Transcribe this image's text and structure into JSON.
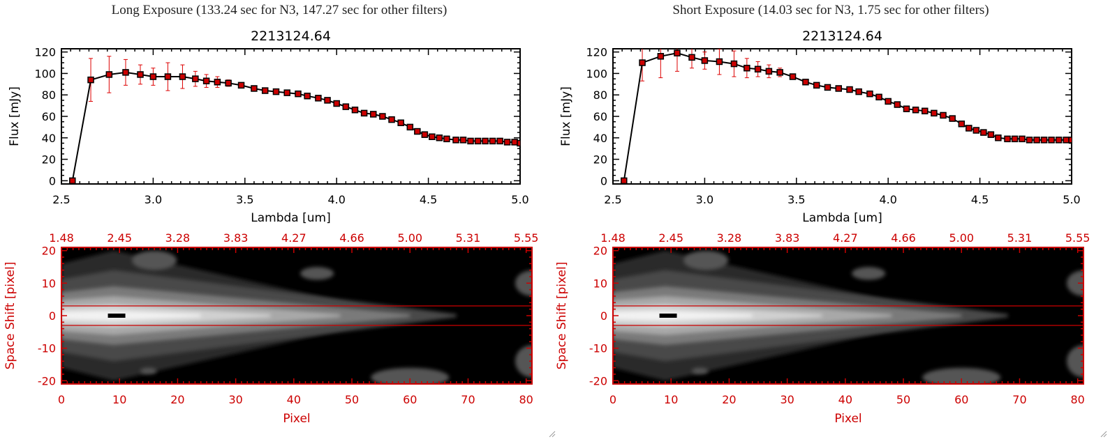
{
  "panels": [
    {
      "heading": "Long Exposure (133.24 sec for N3, 147.27 sec for other filters)",
      "chart_data": {
        "type": "line",
        "title": "2213124.64",
        "xlabel": "Lambda [um]",
        "ylabel": "Flux [mJy]",
        "xlim": [
          2.5,
          5.0
        ],
        "ylim": [
          -3,
          123
        ],
        "x_ticks": [
          "2.5",
          "3.0",
          "3.5",
          "4.0",
          "4.5",
          "5.0"
        ],
        "y_ticks": [
          "0",
          "20",
          "40",
          "60",
          "80",
          "100",
          "120"
        ],
        "grid": false,
        "series": [
          {
            "color": "#000000",
            "marker_color": "#cc0000",
            "error_color": "#dd0000",
            "x": [
              2.56,
              2.66,
              2.76,
              2.85,
              2.93,
              3.0,
              3.08,
              3.16,
              3.23,
              3.29,
              3.35,
              3.41,
              3.48,
              3.55,
              3.61,
              3.67,
              3.73,
              3.79,
              3.84,
              3.9,
              3.95,
              4.0,
              4.05,
              4.1,
              4.15,
              4.2,
              4.25,
              4.3,
              4.35,
              4.4,
              4.44,
              4.48,
              4.52,
              4.56,
              4.6,
              4.65,
              4.69,
              4.73,
              4.77,
              4.81,
              4.85,
              4.89,
              4.93,
              4.97,
              5.0
            ],
            "y": [
              0,
              94,
              99,
              101,
              99,
              97,
              97,
              97,
              95,
              93,
              92,
              91,
              89,
              86,
              84,
              83,
              82,
              81,
              79,
              77,
              75,
              72,
              69,
              66,
              63,
              62,
              60,
              57,
              54,
              50,
              46,
              43,
              41,
              40,
              39,
              38,
              38,
              37,
              37,
              37,
              37,
              37,
              36,
              36,
              35
            ],
            "err": [
              0,
              20,
              17,
              12,
              9,
              8,
              13,
              11,
              7,
              6,
              5,
              3,
              2,
              2,
              2,
              2,
              2,
              2,
              2,
              2,
              2,
              2,
              2,
              2,
              2,
              2,
              2,
              2,
              2,
              2,
              2,
              2,
              2,
              2,
              2,
              2,
              2,
              2,
              2,
              2,
              2,
              2,
              2,
              2,
              2
            ]
          }
        ]
      },
      "image": {
        "xlabel": "Pixel",
        "ylabel": "Space Shift [pixel]",
        "xlim": [
          0,
          81
        ],
        "ylim": [
          -21,
          21
        ],
        "x_ticks": [
          "0",
          "10",
          "20",
          "30",
          "40",
          "50",
          "60",
          "70",
          "80"
        ],
        "y_ticks": [
          "-20",
          "-10",
          "0",
          "10",
          "20"
        ],
        "top_ticks": [
          "1.48",
          "2.45",
          "3.28",
          "3.83",
          "4.27",
          "4.66",
          "5.00",
          "5.31",
          "5.55"
        ],
        "aperture_lines": [
          3,
          -3
        ],
        "axis_color": "#cc0000"
      }
    },
    {
      "heading": "Short Exposure (14.03 sec for N3, 1.75 sec for other filters)",
      "chart_data": {
        "type": "line",
        "title": "2213124.64",
        "xlabel": "Lambda [um]",
        "ylabel": "Flux [mJy]",
        "xlim": [
          2.5,
          5.0
        ],
        "ylim": [
          -3,
          123
        ],
        "x_ticks": [
          "2.5",
          "3.0",
          "3.5",
          "4.0",
          "4.5",
          "5.0"
        ],
        "y_ticks": [
          "0",
          "20",
          "40",
          "60",
          "80",
          "100",
          "120"
        ],
        "grid": false,
        "series": [
          {
            "color": "#000000",
            "marker_color": "#cc0000",
            "error_color": "#dd0000",
            "x": [
              2.56,
              2.66,
              2.76,
              2.85,
              2.93,
              3.0,
              3.08,
              3.16,
              3.23,
              3.29,
              3.35,
              3.41,
              3.48,
              3.55,
              3.61,
              3.67,
              3.73,
              3.79,
              3.84,
              3.9,
              3.95,
              4.0,
              4.05,
              4.1,
              4.15,
              4.2,
              4.25,
              4.3,
              4.35,
              4.4,
              4.44,
              4.48,
              4.52,
              4.56,
              4.6,
              4.65,
              4.69,
              4.73,
              4.77,
              4.81,
              4.85,
              4.89,
              4.93,
              4.97,
              5.0
            ],
            "y": [
              0,
              110,
              116,
              119,
              115,
              112,
              111,
              109,
              105,
              104,
              102,
              101,
              97,
              92,
              89,
              87,
              86,
              85,
              83,
              81,
              78,
              74,
              71,
              67,
              66,
              65,
              63,
              61,
              58,
              53,
              49,
              47,
              45,
              43,
              40,
              39,
              39,
              39,
              38,
              38,
              38,
              38,
              38,
              38,
              38
            ],
            "err": [
              0,
              17,
              20,
              17,
              10,
              8,
              12,
              12,
              9,
              7,
              6,
              4,
              2,
              2,
              2,
              2,
              2,
              2,
              2,
              2,
              2,
              2,
              2,
              2,
              2,
              2,
              2,
              2,
              2,
              2,
              2,
              2,
              2,
              2,
              2,
              2,
              2,
              2,
              2,
              2,
              2,
              2,
              2,
              2,
              2
            ]
          }
        ]
      },
      "image": {
        "xlabel": "Pixel",
        "ylabel": "Space Shift [pixel]",
        "xlim": [
          0,
          81
        ],
        "ylim": [
          -21,
          21
        ],
        "x_ticks": [
          "0",
          "10",
          "20",
          "30",
          "40",
          "50",
          "60",
          "70",
          "80"
        ],
        "y_ticks": [
          "-20",
          "-10",
          "0",
          "10",
          "20"
        ],
        "top_ticks": [
          "1.48",
          "2.45",
          "3.28",
          "3.83",
          "4.27",
          "4.66",
          "5.00",
          "5.31",
          "5.55"
        ],
        "aperture_lines": [
          3,
          -3
        ],
        "axis_color": "#cc0000"
      }
    }
  ]
}
